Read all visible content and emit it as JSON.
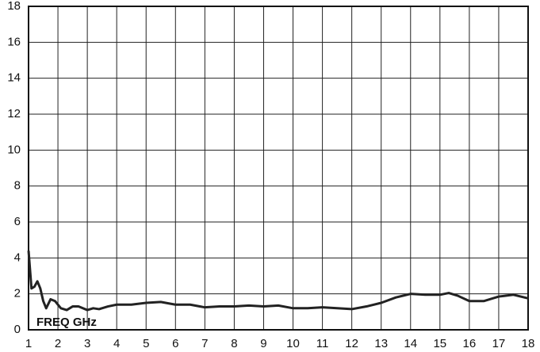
{
  "chart_data": {
    "type": "line",
    "annotation": "FREQ GHz",
    "x": [
      1,
      1.1,
      1.2,
      1.3,
      1.4,
      1.5,
      1.6,
      1.75,
      1.9,
      2.1,
      2.3,
      2.5,
      2.7,
      3.0,
      3.2,
      3.4,
      3.7,
      4,
      4.5,
      5,
      5.5,
      6,
      6.5,
      7,
      7.5,
      8,
      8.5,
      9,
      9.5,
      10,
      10.5,
      11,
      11.5,
      12,
      12.5,
      13,
      13.5,
      14,
      14.5,
      15,
      15.3,
      15.6,
      16,
      16.5,
      17,
      17.5,
      18
    ],
    "series": [
      {
        "color": "#222222",
        "values": [
          4.4,
          2.3,
          2.4,
          2.7,
          2.3,
          1.6,
          1.2,
          1.7,
          1.6,
          1.2,
          1.1,
          1.3,
          1.3,
          1.1,
          1.2,
          1.15,
          1.3,
          1.4,
          1.4,
          1.5,
          1.55,
          1.4,
          1.4,
          1.25,
          1.3,
          1.3,
          1.35,
          1.3,
          1.35,
          1.2,
          1.2,
          1.25,
          1.2,
          1.15,
          1.3,
          1.5,
          1.8,
          2.0,
          1.95,
          1.95,
          2.05,
          1.9,
          1.6,
          1.6,
          1.85,
          1.95,
          1.75
        ]
      }
    ],
    "xlim": [
      1,
      18
    ],
    "xticks": [
      1,
      2,
      3,
      4,
      5,
      6,
      7,
      8,
      9,
      10,
      11,
      12,
      13,
      14,
      15,
      16,
      17,
      18
    ],
    "ylim": [
      0,
      18
    ],
    "yticks": [
      0,
      2,
      4,
      6,
      8,
      10,
      12,
      14,
      16,
      18
    ],
    "grid": true
  }
}
